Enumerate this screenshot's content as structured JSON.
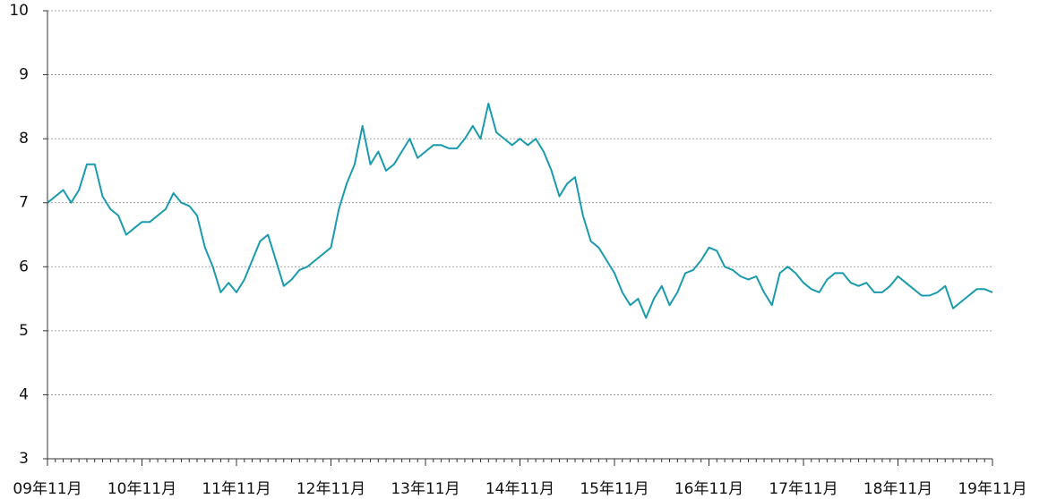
{
  "chart_data": {
    "type": "line",
    "color": "#1a9bad",
    "grid": true,
    "ylim": [
      3,
      10
    ],
    "yticks": [
      3,
      4,
      5,
      6,
      7,
      8,
      9,
      10
    ],
    "categories": [
      "09年11月",
      null,
      null,
      null,
      null,
      null,
      null,
      null,
      null,
      null,
      null,
      null,
      "10年11月",
      null,
      null,
      null,
      null,
      null,
      null,
      null,
      null,
      null,
      null,
      null,
      "11年11月",
      null,
      null,
      null,
      null,
      null,
      null,
      null,
      null,
      null,
      null,
      null,
      "12年11月",
      null,
      null,
      null,
      null,
      null,
      null,
      null,
      null,
      null,
      null,
      null,
      "13年11月",
      null,
      null,
      null,
      null,
      null,
      null,
      null,
      null,
      null,
      null,
      null,
      "14年11月",
      null,
      null,
      null,
      null,
      null,
      null,
      null,
      null,
      null,
      null,
      null,
      "15年11月",
      null,
      null,
      null,
      null,
      null,
      null,
      null,
      null,
      null,
      null,
      null,
      "16年11月",
      null,
      null,
      null,
      null,
      null,
      null,
      null,
      null,
      null,
      null,
      null,
      "17年11月",
      null,
      null,
      null,
      null,
      null,
      null,
      null,
      null,
      null,
      null,
      null,
      "18年11月",
      null,
      null,
      null,
      null,
      null,
      null,
      null,
      null,
      null,
      null,
      null,
      "19年11月"
    ],
    "values": [
      7.0,
      7.1,
      7.2,
      7.0,
      7.2,
      7.6,
      7.6,
      7.1,
      6.9,
      6.8,
      6.5,
      6.6,
      6.7,
      6.7,
      6.8,
      6.9,
      7.15,
      7.0,
      6.95,
      6.8,
      6.3,
      6.0,
      5.6,
      5.75,
      5.6,
      5.8,
      6.1,
      6.4,
      6.5,
      6.1,
      5.7,
      5.8,
      5.95,
      6.0,
      6.1,
      6.2,
      6.3,
      6.9,
      7.3,
      7.6,
      8.2,
      7.6,
      7.8,
      7.5,
      7.6,
      7.8,
      8.0,
      7.7,
      7.8,
      7.9,
      7.9,
      7.85,
      7.85,
      8.0,
      8.2,
      8.0,
      8.55,
      8.1,
      8.0,
      7.9,
      8.0,
      7.9,
      8.0,
      7.8,
      7.5,
      7.1,
      7.3,
      7.4,
      6.8,
      6.4,
      6.3,
      6.1,
      5.9,
      5.6,
      5.4,
      5.5,
      5.2,
      5.5,
      5.7,
      5.4,
      5.6,
      5.9,
      5.95,
      6.1,
      6.3,
      6.25,
      6.0,
      5.95,
      5.85,
      5.8,
      5.85,
      5.6,
      5.4,
      5.9,
      6.0,
      5.9,
      5.75,
      5.65,
      5.6,
      5.8,
      5.9,
      5.9,
      5.75,
      5.7,
      5.75,
      5.6,
      5.6,
      5.7,
      5.85,
      5.75,
      5.65,
      5.55,
      5.55,
      5.6,
      5.7,
      5.35,
      5.45,
      5.55,
      5.65,
      5.65,
      5.6
    ]
  }
}
